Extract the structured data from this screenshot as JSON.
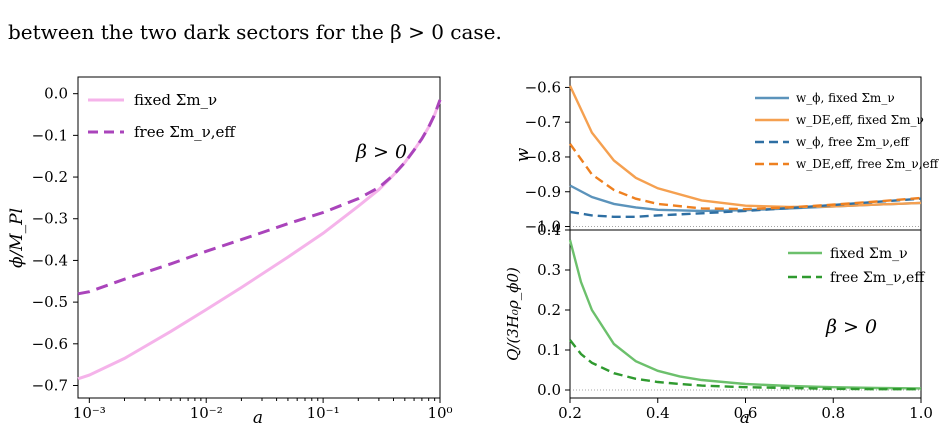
{
  "caption": "between the two dark sectors for the β > 0 case.",
  "colors": {
    "fixed_phi": "#f5b3ea",
    "free_phi": "#aa44bb",
    "w_phi": "#5b93bb",
    "w_de": "#f5a050",
    "w_phi_free": "#2e6fa3",
    "w_de_free": "#ee8020",
    "q_fixed": "#6cc06c",
    "q_free": "#2f9a2f",
    "ref_line": "#888888"
  },
  "chart_data": [
    {
      "type": "line",
      "xscale": "log",
      "xlabel": "a",
      "ylabel": "ϕ/M_Pl",
      "xlim": [
        0.0008,
        1
      ],
      "ylim": [
        -0.73,
        0.04
      ],
      "xticks": [
        0.001,
        0.01,
        0.1,
        1
      ],
      "xtick_labels": [
        "10⁻³",
        "10⁻²",
        "10⁻¹",
        "10⁰"
      ],
      "yticks": [
        0.0,
        -0.1,
        -0.2,
        -0.3,
        -0.4,
        -0.5,
        -0.6,
        -0.7
      ],
      "ytick_labels": [
        "0.0",
        "−0.1",
        "−0.2",
        "−0.3",
        "−0.4",
        "−0.5",
        "−0.6",
        "−0.7"
      ],
      "annotation": "β > 0",
      "legend": "top-left",
      "series": [
        {
          "name": "fixed Σm_ν",
          "style": "solid",
          "x": [
            0.0008,
            0.001,
            0.002,
            0.005,
            0.01,
            0.02,
            0.05,
            0.1,
            0.2,
            0.3,
            0.4,
            0.5,
            0.6,
            0.7,
            0.8,
            0.9,
            1.0
          ],
          "y": [
            -0.684,
            -0.675,
            -0.635,
            -0.57,
            -0.518,
            -0.465,
            -0.392,
            -0.335,
            -0.27,
            -0.23,
            -0.195,
            -0.165,
            -0.135,
            -0.108,
            -0.08,
            -0.05,
            -0.015
          ]
        },
        {
          "name": "free Σm_ν,eff",
          "style": "dashed",
          "x": [
            0.0008,
            0.001,
            0.002,
            0.005,
            0.01,
            0.02,
            0.05,
            0.1,
            0.2,
            0.3,
            0.4,
            0.5,
            0.6,
            0.7,
            0.8,
            0.9,
            1.0
          ],
          "y": [
            -0.48,
            -0.475,
            -0.445,
            -0.408,
            -0.378,
            -0.35,
            -0.312,
            -0.285,
            -0.252,
            -0.225,
            -0.195,
            -0.165,
            -0.135,
            -0.108,
            -0.08,
            -0.05,
            -0.015
          ]
        }
      ]
    },
    {
      "type": "line",
      "xlabel": "",
      "ylabel": "w",
      "xlim": [
        0.2,
        1.0
      ],
      "ylim": [
        -1.01,
        -0.57
      ],
      "yticks": [
        -0.6,
        -0.7,
        -0.8,
        -0.9,
        -1.0
      ],
      "ytick_labels": [
        "−0.6",
        "−0.7",
        "−0.8",
        "−0.9",
        "−1.0"
      ],
      "reference_line": -1.0,
      "legend": "top-right",
      "series": [
        {
          "name": "w_ϕ, fixed Σm_ν",
          "color_key": "w_phi",
          "style": "solid",
          "x": [
            0.2,
            0.25,
            0.3,
            0.35,
            0.4,
            0.5,
            0.6,
            0.7,
            0.8,
            0.9,
            1.0
          ],
          "y": [
            -0.882,
            -0.915,
            -0.935,
            -0.945,
            -0.952,
            -0.955,
            -0.953,
            -0.948,
            -0.942,
            -0.937,
            -0.932
          ]
        },
        {
          "name": "w_DE,eff, fixed Σm_ν",
          "color_key": "w_de",
          "style": "solid",
          "x": [
            0.2,
            0.25,
            0.3,
            0.35,
            0.4,
            0.5,
            0.6,
            0.7,
            0.8,
            0.9,
            1.0
          ],
          "y": [
            -0.595,
            -0.73,
            -0.81,
            -0.86,
            -0.89,
            -0.925,
            -0.94,
            -0.944,
            -0.942,
            -0.937,
            -0.932
          ]
        },
        {
          "name": "w_ϕ, free Σm_ν,eff",
          "color_key": "w_phi_free",
          "style": "dashed",
          "x": [
            0.2,
            0.25,
            0.3,
            0.35,
            0.4,
            0.5,
            0.6,
            0.7,
            0.8,
            0.9,
            1.0
          ],
          "y": [
            -0.958,
            -0.968,
            -0.972,
            -0.972,
            -0.968,
            -0.962,
            -0.955,
            -0.947,
            -0.938,
            -0.929,
            -0.92
          ]
        },
        {
          "name": "w_DE,eff, free Σm_ν,eff",
          "color_key": "w_de_free",
          "style": "dashed",
          "x": [
            0.2,
            0.25,
            0.3,
            0.35,
            0.4,
            0.5,
            0.6,
            0.7,
            0.8,
            0.9,
            1.0
          ],
          "y": [
            -0.762,
            -0.85,
            -0.895,
            -0.92,
            -0.935,
            -0.948,
            -0.95,
            -0.945,
            -0.937,
            -0.928,
            -0.918
          ]
        }
      ]
    },
    {
      "type": "line",
      "xlabel": "a",
      "ylabel": "Q/(3H₀ρ_ϕ0)",
      "xlim": [
        0.2,
        1.0
      ],
      "ylim": [
        -0.02,
        0.4
      ],
      "xticks": [
        0.2,
        0.4,
        0.6,
        0.8,
        1.0
      ],
      "xtick_labels": [
        "0.2",
        "0.4",
        "0.6",
        "0.8",
        "1.0"
      ],
      "yticks": [
        0.0,
        0.1,
        0.2,
        0.3,
        0.4
      ],
      "ytick_labels": [
        "0.0",
        "0.1",
        "0.2",
        "0.3",
        "0.4"
      ],
      "reference_line": 0.0,
      "annotation": "β > 0",
      "legend": "top-right",
      "series": [
        {
          "name": "fixed Σm_ν",
          "color_key": "q_fixed",
          "style": "solid",
          "x": [
            0.2,
            0.225,
            0.25,
            0.3,
            0.35,
            0.4,
            0.45,
            0.5,
            0.6,
            0.7,
            0.8,
            0.9,
            1.0
          ],
          "y": [
            0.375,
            0.27,
            0.2,
            0.115,
            0.072,
            0.048,
            0.034,
            0.025,
            0.015,
            0.01,
            0.007,
            0.005,
            0.004
          ]
        },
        {
          "name": "free Σm_ν,eff",
          "color_key": "q_free",
          "style": "dashed",
          "x": [
            0.2,
            0.225,
            0.25,
            0.3,
            0.35,
            0.4,
            0.45,
            0.5,
            0.6,
            0.7,
            0.8,
            0.9,
            1.0
          ],
          "y": [
            0.125,
            0.09,
            0.068,
            0.042,
            0.028,
            0.02,
            0.015,
            0.011,
            0.007,
            0.005,
            0.003,
            0.002,
            0.002
          ]
        }
      ]
    }
  ]
}
